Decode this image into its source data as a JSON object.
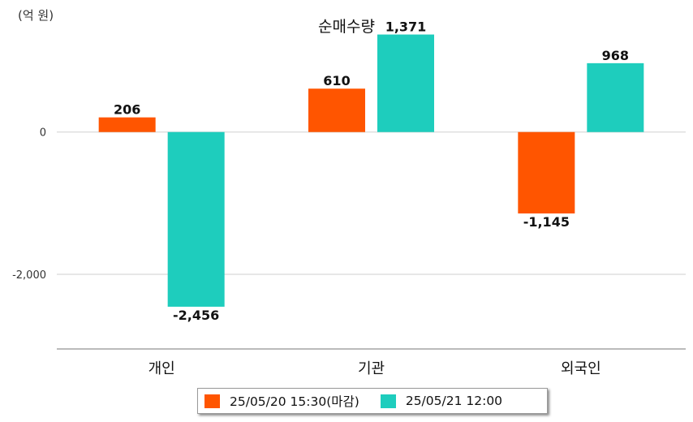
{
  "unit_label": "(억 원)",
  "chart_data": {
    "type": "bar",
    "title": "순매수량",
    "categories": [
      "개인",
      "기관",
      "외국인"
    ],
    "series": [
      {
        "name": "25/05/20 15:30(마감)",
        "color": "#ff5500",
        "values": [
          206,
          610,
          -1145
        ],
        "labels": [
          "206",
          "610",
          "-1,145"
        ]
      },
      {
        "name": "25/05/21 12:00",
        "color": "#1ecdbd",
        "values": [
          -2456,
          1371,
          968
        ],
        "labels": [
          "-2,456",
          "1,371",
          "968"
        ]
      }
    ],
    "yticks": [
      0,
      -2000
    ],
    "ytick_labels": [
      "0",
      "-2,000"
    ],
    "ylim": [
      -3050,
      1400
    ],
    "grid": true,
    "legend_position": "bottom"
  }
}
